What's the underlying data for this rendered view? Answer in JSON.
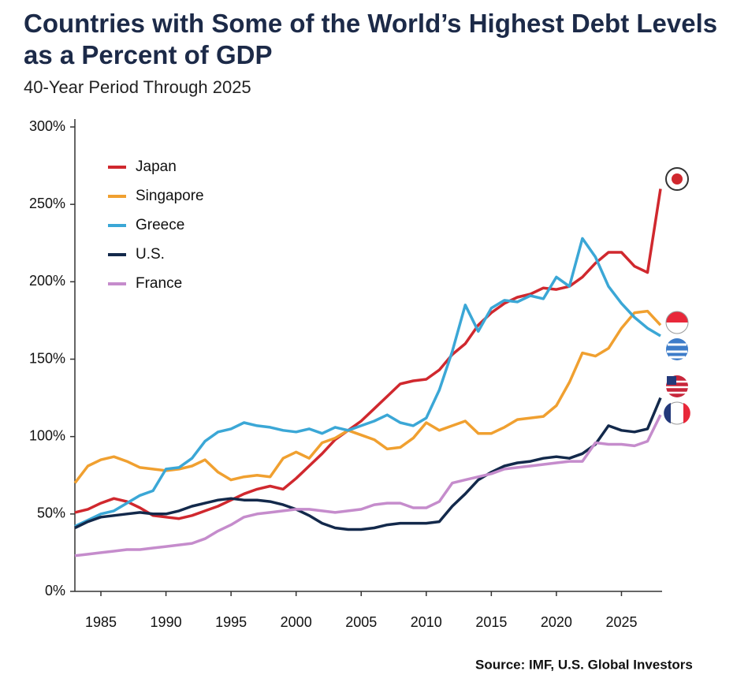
{
  "chart_data": {
    "type": "line",
    "title": "Countries with Some of the World’s Highest Debt Levels as a Percent of GDP",
    "subtitle": "40-Year Period Through 2025",
    "source": "Source: IMF, U.S. Global Investors",
    "x": [
      1983,
      1984,
      1985,
      1986,
      1987,
      1988,
      1989,
      1990,
      1991,
      1992,
      1993,
      1994,
      1995,
      1996,
      1997,
      1998,
      1999,
      2000,
      2001,
      2002,
      2003,
      2004,
      2005,
      2006,
      2007,
      2008,
      2009,
      2010,
      2011,
      2012,
      2013,
      2014,
      2015,
      2016,
      2017,
      2018,
      2019,
      2020,
      2021,
      2022,
      2023,
      2024,
      2025,
      2026,
      2027,
      2028
    ],
    "xlim": [
      1983,
      2028
    ],
    "xticks": [
      1985,
      1990,
      1995,
      2000,
      2005,
      2010,
      2015,
      2020,
      2025
    ],
    "ylim": [
      0,
      300
    ],
    "yticks": [
      {
        "value": 0,
        "label": "0%"
      },
      {
        "value": 50,
        "label": "50%"
      },
      {
        "value": 100,
        "label": "100%"
      },
      {
        "value": 150,
        "label": "150%"
      },
      {
        "value": 200,
        "label": "200%"
      },
      {
        "value": 250,
        "label": "250%"
      },
      {
        "value": 300,
        "label": "300%"
      }
    ],
    "series": [
      {
        "name": "Japan",
        "color": "#d0282e",
        "values": [
          51,
          53,
          57,
          60,
          58,
          54,
          49,
          48,
          47,
          49,
          52,
          55,
          59,
          63,
          66,
          68,
          66,
          73,
          81,
          89,
          98,
          104,
          110,
          118,
          126,
          134,
          136,
          137,
          143,
          153,
          160,
          172,
          180,
          186,
          190,
          192,
          196,
          195,
          197,
          203,
          212,
          219,
          219,
          210,
          206,
          260
        ]
      },
      {
        "name": "Singapore",
        "color": "#f0a030",
        "values": [
          70,
          81,
          85,
          87,
          84,
          80,
          79,
          78,
          79,
          81,
          85,
          77,
          72,
          74,
          75,
          74,
          86,
          90,
          86,
          96,
          99,
          104,
          101,
          98,
          92,
          93,
          99,
          109,
          104,
          107,
          110,
          102,
          102,
          106,
          111,
          112,
          113,
          120,
          135,
          154,
          152,
          157,
          170,
          180,
          181,
          172
        ]
      },
      {
        "name": "Greece",
        "color": "#3ba7d6",
        "values": [
          42,
          46,
          50,
          52,
          57,
          62,
          65,
          79,
          80,
          86,
          97,
          103,
          105,
          109,
          107,
          106,
          104,
          103,
          105,
          102,
          106,
          104,
          107,
          110,
          114,
          109,
          107,
          112,
          130,
          155,
          185,
          168,
          183,
          188,
          187,
          191,
          189,
          203,
          197,
          228,
          216,
          197,
          186,
          177,
          170,
          165
        ]
      },
      {
        "name": "U.S.",
        "color": "#13294b",
        "values": [
          41,
          45,
          48,
          49,
          50,
          51,
          50,
          50,
          52,
          55,
          57,
          59,
          60,
          59,
          59,
          58,
          56,
          53,
          49,
          44,
          41,
          40,
          40,
          41,
          43,
          44,
          44,
          44,
          45,
          55,
          63,
          72,
          77,
          81,
          83,
          84,
          86,
          87,
          86,
          89,
          95,
          107,
          104,
          103,
          105,
          125
        ]
      },
      {
        "name": "France",
        "color": "#c58ccc",
        "values": [
          23,
          24,
          25,
          26,
          27,
          27,
          28,
          29,
          30,
          31,
          34,
          39,
          43,
          48,
          50,
          51,
          52,
          53,
          53,
          52,
          51,
          52,
          53,
          56,
          57,
          57,
          54,
          54,
          58,
          70,
          72,
          74,
          76,
          79,
          80,
          81,
          82,
          83,
          84,
          84,
          96,
          95,
          95,
          94,
          97,
          114
        ]
      }
    ]
  }
}
